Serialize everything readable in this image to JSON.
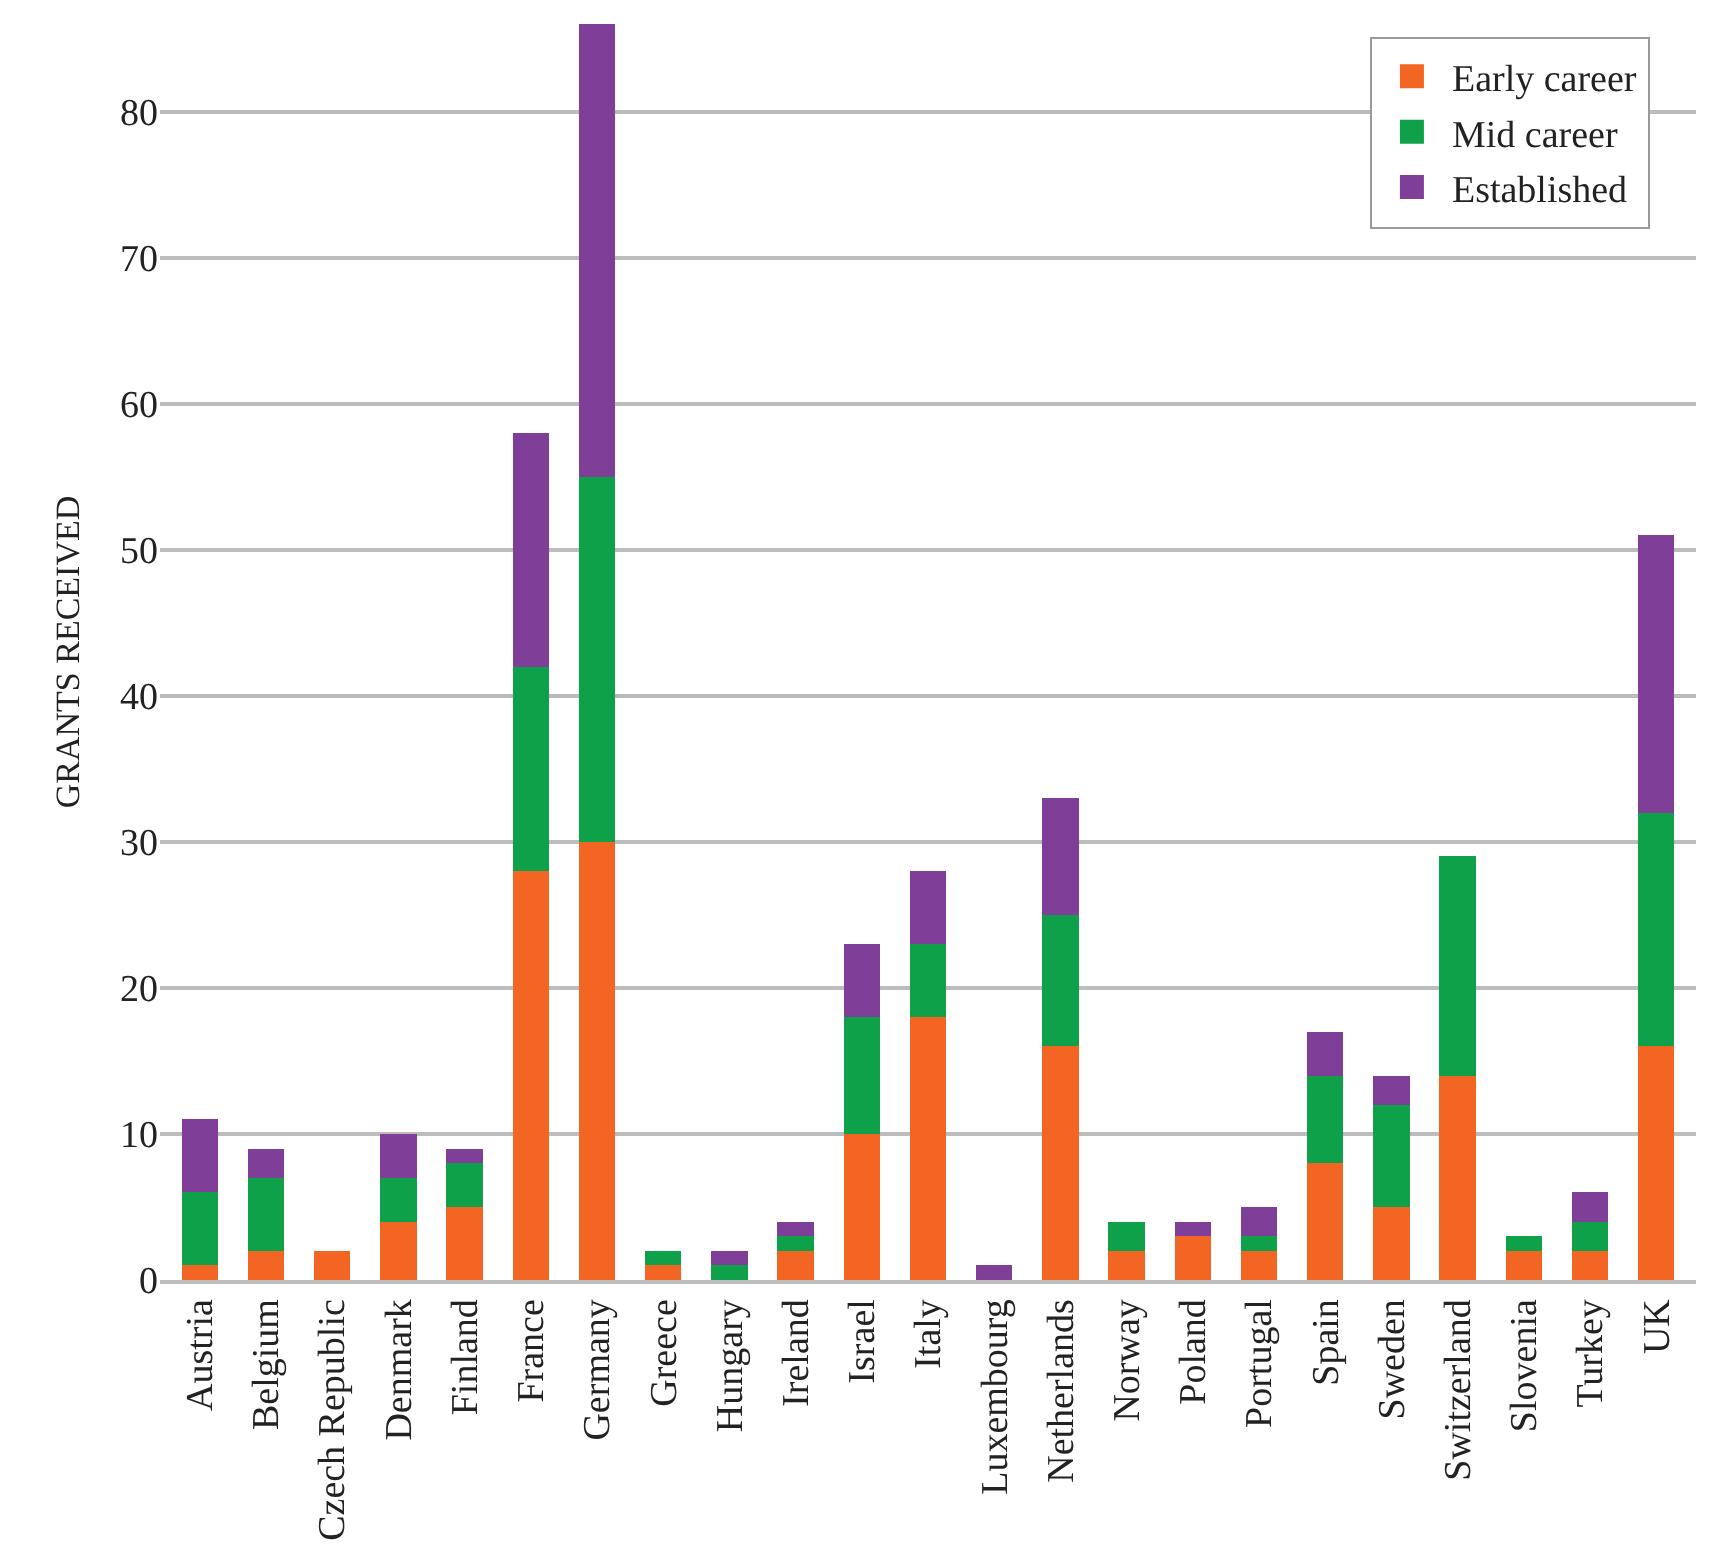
{
  "chart_data": {
    "type": "bar",
    "stacked": true,
    "ylabel": "GRANTS RECEIVED",
    "categories": [
      "Austria",
      "Belgium",
      "Czech Republic",
      "Denmark",
      "Finland",
      "France",
      "Germany",
      "Greece",
      "Hungary",
      "Ireland",
      "Israel",
      "Italy",
      "Luxembourg",
      "Netherlands",
      "Norway",
      "Poland",
      "Portugal",
      "Spain",
      "Sweden",
      "Switzerland",
      "Slovenia",
      "Turkey",
      "UK"
    ],
    "series": [
      {
        "name": "Early career",
        "color": "#f26522",
        "values": [
          1,
          2,
          2,
          4,
          5,
          28,
          30,
          1,
          0,
          2,
          10,
          18,
          0,
          16,
          2,
          3,
          2,
          8,
          5,
          14,
          2,
          2,
          16
        ]
      },
      {
        "name": "Mid career",
        "color": "#0fa04a",
        "values": [
          5,
          5,
          0,
          3,
          3,
          14,
          25,
          1,
          1,
          1,
          8,
          5,
          0,
          9,
          2,
          0,
          1,
          6,
          7,
          15,
          1,
          2,
          16
        ]
      },
      {
        "name": "Established",
        "color": "#7f3f98",
        "values": [
          5,
          2,
          0,
          3,
          1,
          16,
          31,
          0,
          1,
          1,
          5,
          5,
          1,
          8,
          0,
          1,
          2,
          3,
          2,
          0,
          0,
          2,
          19
        ]
      }
    ],
    "ylim": [
      0,
      86
    ],
    "yticks": [
      0,
      10,
      20,
      30,
      40,
      50,
      60,
      70,
      80
    ],
    "grid": "y",
    "legend": "top right"
  }
}
